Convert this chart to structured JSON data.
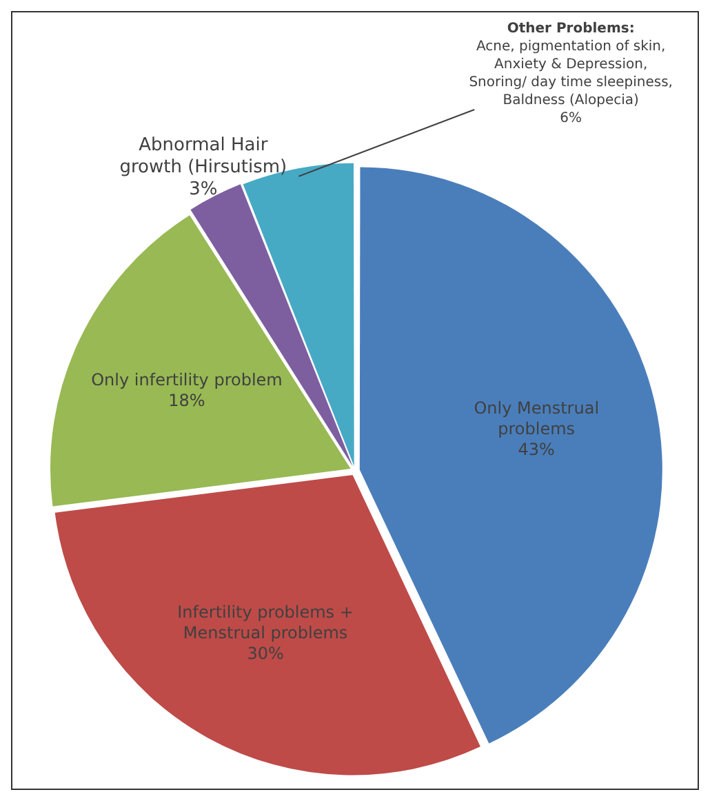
{
  "chart_data": {
    "type": "pie",
    "categories": [
      "Only Menstrual problems",
      "Infertility problems + Menstrual problems",
      "Only infertility problem",
      "Abnormal Hair growth (Hirsutism)",
      "Other Problems: Acne, pigmentation of skin, Anxiety & Depression, Snoring/ day time sleepiness, Baldness (Alopecia)"
    ],
    "values": [
      43,
      30,
      18,
      3,
      6
    ],
    "colors": [
      "#4a7ebb",
      "#be4b48",
      "#98b954",
      "#7d5fa0",
      "#46aac5"
    ],
    "value_labels": [
      "43%",
      "30%",
      "18%",
      "3%",
      "6%"
    ],
    "legend": false
  }
}
